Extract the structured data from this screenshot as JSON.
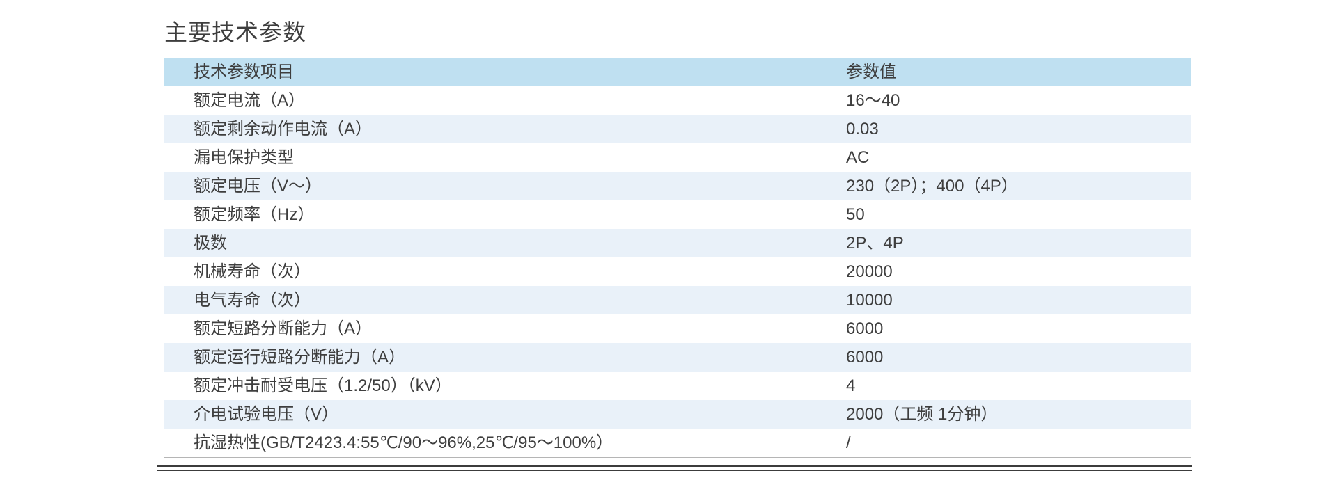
{
  "page": {
    "title": "主要技术参数"
  },
  "table": {
    "headers": [
      "技术参数项目",
      "参数值"
    ],
    "rows": [
      {
        "item": "额定电流（A）",
        "value": "16～40"
      },
      {
        "item": "额定剩余动作电流（A）",
        "value": "0.03"
      },
      {
        "item": "漏电保护类型",
        "value": "AC"
      },
      {
        "item": "额定电压（V～）",
        "value": "230（2P）；400（4P）"
      },
      {
        "item": "额定频率（Hz）",
        "value": "50"
      },
      {
        "item": "极数",
        "value": "2P、4P"
      },
      {
        "item": "机械寿命（次）",
        "value": "20000"
      },
      {
        "item": "电气寿命（次）",
        "value": "10000"
      },
      {
        "item": "额定短路分断能力（A）",
        "value": "6000"
      },
      {
        "item": "额定运行短路分断能力（A）",
        "value": "6000"
      },
      {
        "item": "额定冲击耐受电压（1.2/50）（kV）",
        "value": "4"
      },
      {
        "item": "介电试验电压（V）",
        "value": "2000（工频 1分钟）"
      },
      {
        "item": "抗湿热性(GB/T2423.4:55℃/90～96%,25℃/95～100%）",
        "value": "/"
      }
    ],
    "colors": {
      "header_bg": "#bfe0f1",
      "stripe_bg": "#e9f1f9",
      "text": "#3e3e3e",
      "divider": "#3c3c3c"
    }
  }
}
